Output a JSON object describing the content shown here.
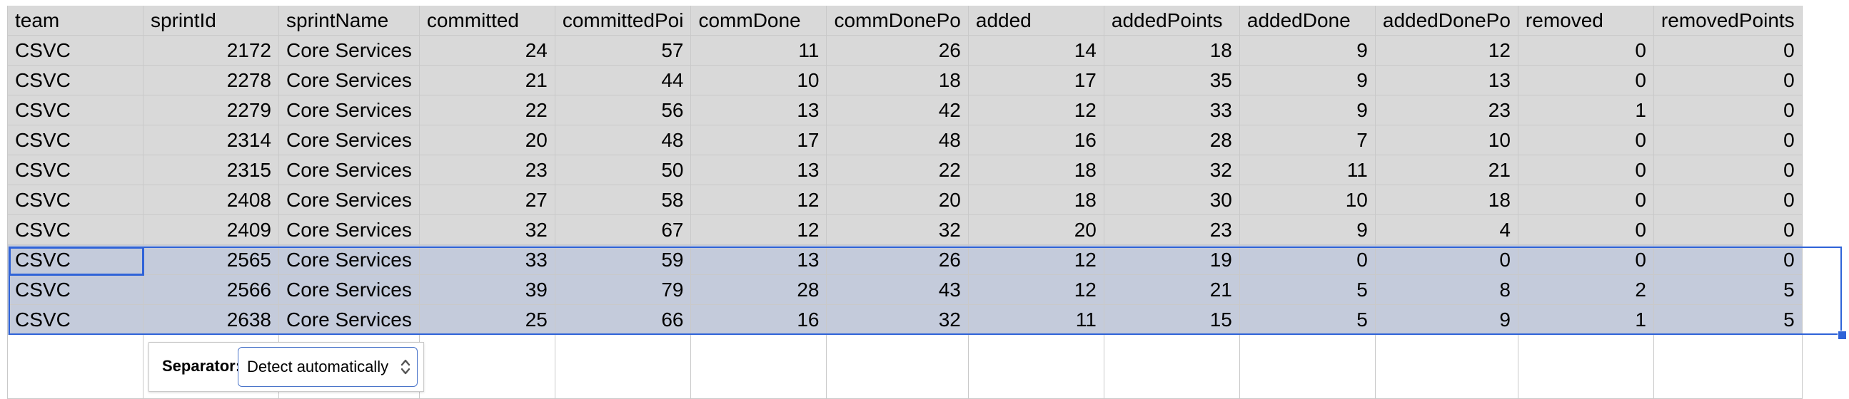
{
  "columns": [
    "team",
    "sprintId",
    "sprintName",
    "committed",
    "committedPoi",
    "commDone",
    "commDonePo",
    "added",
    "addedPoints",
    "addedDone",
    "addedDonePo",
    "removed",
    "removedPoints"
  ],
  "rows": [
    [
      "CSVC",
      "2172",
      "Core Services",
      "24",
      "57",
      "11",
      "26",
      "14",
      "18",
      "9",
      "12",
      "0",
      "0"
    ],
    [
      "CSVC",
      "2278",
      "Core Services",
      "21",
      "44",
      "10",
      "18",
      "17",
      "35",
      "9",
      "13",
      "0",
      "0"
    ],
    [
      "CSVC",
      "2279",
      "Core Services",
      "22",
      "56",
      "13",
      "42",
      "12",
      "33",
      "9",
      "23",
      "1",
      "0"
    ],
    [
      "CSVC",
      "2314",
      "Core Services",
      "20",
      "48",
      "17",
      "48",
      "16",
      "28",
      "7",
      "10",
      "0",
      "0"
    ],
    [
      "CSVC",
      "2315",
      "Core Services",
      "23",
      "50",
      "13",
      "22",
      "18",
      "32",
      "11",
      "21",
      "0",
      "0"
    ],
    [
      "CSVC",
      "2408",
      "Core Services",
      "27",
      "58",
      "12",
      "20",
      "18",
      "30",
      "10",
      "18",
      "0",
      "0"
    ],
    [
      "CSVC",
      "2409",
      "Core Services",
      "32",
      "67",
      "12",
      "32",
      "20",
      "23",
      "9",
      "4",
      "0",
      "0"
    ],
    [
      "CSVC",
      "2565",
      "Core Services",
      "33",
      "59",
      "13",
      "26",
      "12",
      "19",
      "0",
      "0",
      "0",
      "0"
    ],
    [
      "CSVC",
      "2566",
      "Core Services",
      "39",
      "79",
      "28",
      "43",
      "12",
      "21",
      "5",
      "8",
      "2",
      "5"
    ],
    [
      "CSVC",
      "2638",
      "Core Services",
      "25",
      "66",
      "16",
      "32",
      "11",
      "15",
      "5",
      "9",
      "1",
      "5"
    ]
  ],
  "selected_rows": [
    7,
    8,
    9
  ],
  "separator": {
    "label": "Separator:",
    "value": "Detect automatically"
  },
  "colors": {
    "header_bg": "#d9d9d9",
    "selection_bg": "#c4cbdb",
    "selection_border": "#2f63d8"
  },
  "icons": {
    "separator_arrows": "updown-chevron-icon"
  }
}
